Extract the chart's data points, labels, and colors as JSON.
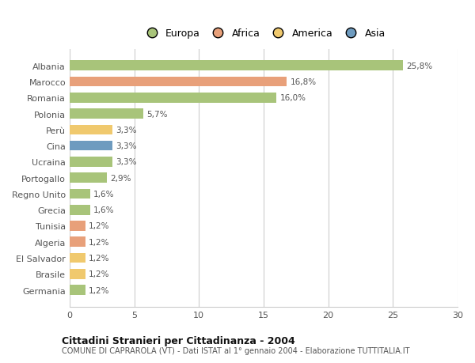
{
  "categories": [
    "Albania",
    "Marocco",
    "Romania",
    "Polonia",
    "Perù",
    "Cina",
    "Ucraina",
    "Portogallo",
    "Regno Unito",
    "Grecia",
    "Tunisia",
    "Algeria",
    "El Salvador",
    "Brasile",
    "Germania"
  ],
  "values": [
    25.8,
    16.8,
    16.0,
    5.7,
    3.3,
    3.3,
    3.3,
    2.9,
    1.6,
    1.6,
    1.2,
    1.2,
    1.2,
    1.2,
    1.2
  ],
  "labels": [
    "25,8%",
    "16,8%",
    "16,0%",
    "5,7%",
    "3,3%",
    "3,3%",
    "3,3%",
    "2,9%",
    "1,6%",
    "1,6%",
    "1,2%",
    "1,2%",
    "1,2%",
    "1,2%",
    "1,2%"
  ],
  "bar_colors": [
    "#a8c47a",
    "#e8a07a",
    "#a8c47a",
    "#a8c47a",
    "#f0c96e",
    "#6e9bbf",
    "#a8c47a",
    "#a8c47a",
    "#a8c47a",
    "#a8c47a",
    "#e8a07a",
    "#e8a07a",
    "#f0c96e",
    "#f0c96e",
    "#a8c47a"
  ],
  "legend_labels": [
    "Europa",
    "Africa",
    "America",
    "Asia"
  ],
  "legend_colors": [
    "#a8c47a",
    "#e8a07a",
    "#f0c96e",
    "#6e9bbf"
  ],
  "title": "Cittadini Stranieri per Cittadinanza - 2004",
  "subtitle": "COMUNE DI CAPRAROLA (VT) - Dati ISTAT al 1° gennaio 2004 - Elaborazione TUTTITALIA.IT",
  "xlim": [
    0,
    30
  ],
  "xticks": [
    0,
    5,
    10,
    15,
    20,
    25,
    30
  ],
  "background_color": "#ffffff",
  "grid_color": "#cccccc"
}
